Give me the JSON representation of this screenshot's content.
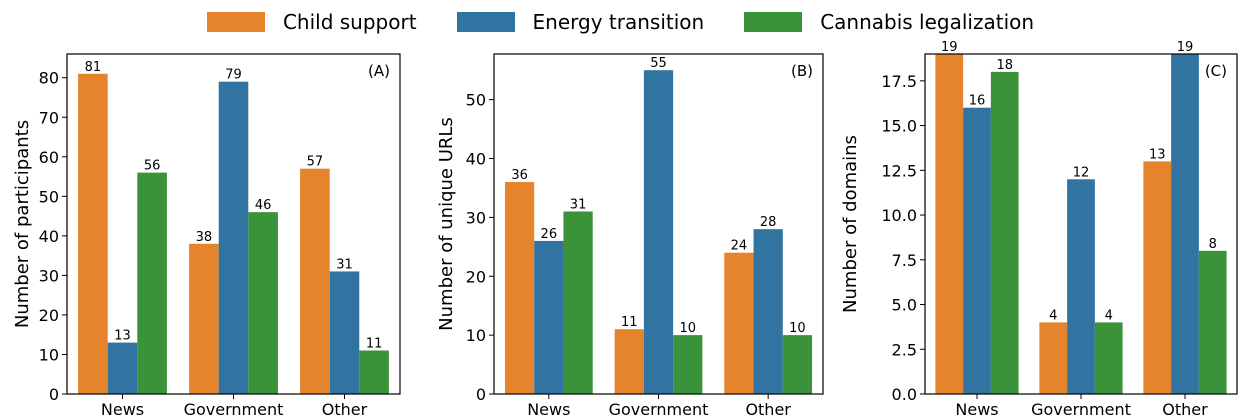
{
  "legend": [
    {
      "name": "Child support",
      "color": "#e6832d"
    },
    {
      "name": "Energy transition",
      "color": "#3274a1"
    },
    {
      "name": "Cannabis legalization",
      "color": "#3a923a"
    }
  ],
  "chart_data": [
    {
      "type": "bar",
      "panel": "(A)",
      "ylabel": "Number of participants",
      "categories": [
        "News",
        "Government",
        "Other"
      ],
      "ylim": [
        0,
        86
      ],
      "yticks": [
        "0",
        "10",
        "20",
        "30",
        "40",
        "50",
        "60",
        "70",
        "80"
      ],
      "series": [
        {
          "name": "Child support",
          "values": [
            81,
            38,
            57
          ]
        },
        {
          "name": "Energy transition",
          "values": [
            13,
            79,
            31
          ]
        },
        {
          "name": "Cannabis legalization",
          "values": [
            56,
            46,
            11
          ]
        }
      ]
    },
    {
      "type": "bar",
      "panel": "(B)",
      "ylabel": "Number of unique URLs",
      "categories": [
        "News",
        "Government",
        "Other"
      ],
      "ylim": [
        0,
        57.75
      ],
      "yticks": [
        "0",
        "10",
        "20",
        "30",
        "40",
        "50"
      ],
      "series": [
        {
          "name": "Child support",
          "values": [
            36,
            11,
            24
          ]
        },
        {
          "name": "Energy transition",
          "values": [
            26,
            55,
            28
          ]
        },
        {
          "name": "Cannabis legalization",
          "values": [
            31,
            10,
            10
          ]
        }
      ]
    },
    {
      "type": "bar",
      "panel": "(C)",
      "ylabel": "Number of domains",
      "categories": [
        "News",
        "Government",
        "Other"
      ],
      "ylim": [
        0,
        19.0
      ],
      "yticks": [
        "0.0",
        "2.5",
        "5.0",
        "7.5",
        "10.0",
        "12.5",
        "15.0",
        "17.5"
      ],
      "series": [
        {
          "name": "Child support",
          "values": [
            19,
            4,
            13
          ]
        },
        {
          "name": "Energy transition",
          "values": [
            16,
            12,
            19
          ]
        },
        {
          "name": "Cannabis legalization",
          "values": [
            18,
            4,
            8
          ]
        }
      ]
    }
  ]
}
